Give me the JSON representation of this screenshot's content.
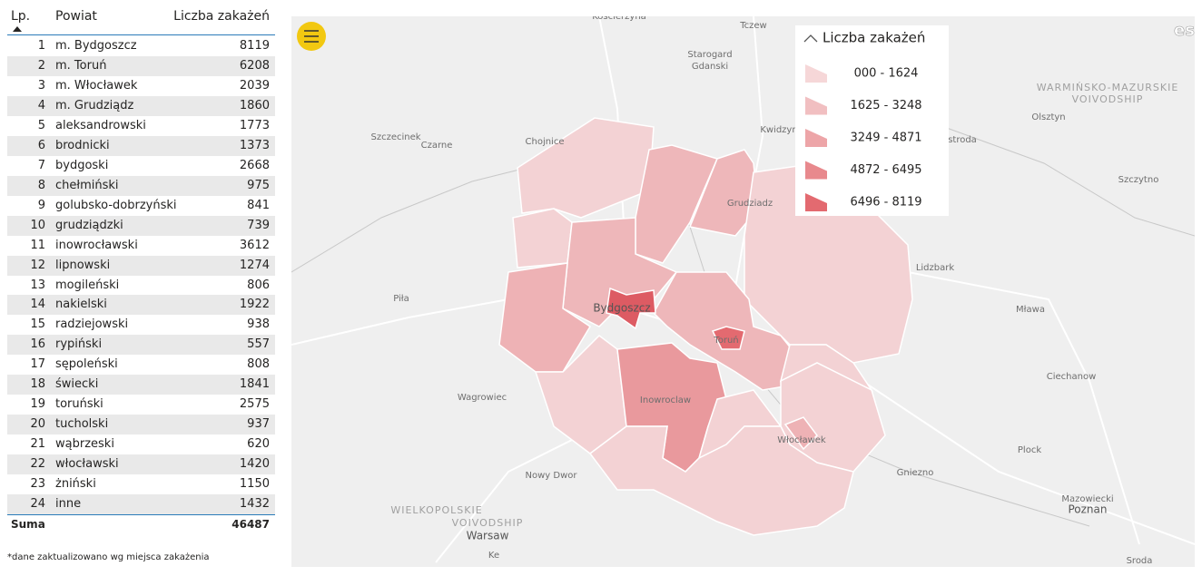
{
  "table": {
    "headers": [
      "Lp.",
      "Powiat",
      "Liczba zakażeń"
    ],
    "rows": [
      [
        1,
        "m. Bydgoszcz",
        8119
      ],
      [
        2,
        "m. Toruń",
        6208
      ],
      [
        3,
        "m. Włocławek",
        2039
      ],
      [
        4,
        "m. Grudziądz",
        1860
      ],
      [
        5,
        "aleksandrowski",
        1773
      ],
      [
        6,
        "brodnicki",
        1373
      ],
      [
        7,
        "bydgoski",
        2668
      ],
      [
        8,
        "chełmiński",
        975
      ],
      [
        9,
        "golubsko-dobrzyński",
        841
      ],
      [
        10,
        "grudziądzki",
        739
      ],
      [
        11,
        "inowrocławski",
        3612
      ],
      [
        12,
        "lipnowski",
        1274
      ],
      [
        13,
        "mogileński",
        806
      ],
      [
        14,
        "nakielski",
        1922
      ],
      [
        15,
        "radziejowski",
        938
      ],
      [
        16,
        "rypiński",
        557
      ],
      [
        17,
        "sępoleński",
        808
      ],
      [
        18,
        "świecki",
        1841
      ],
      [
        19,
        "toruński",
        2575
      ],
      [
        20,
        "tucholski",
        937
      ],
      [
        21,
        "wąbrzeski",
        620
      ],
      [
        22,
        "włocławski",
        1420
      ],
      [
        23,
        "żniński",
        1150
      ],
      [
        24,
        "inne",
        1432
      ]
    ],
    "sum_label": "Suma",
    "sum": 46487
  },
  "footnote": "*dane zaktualizowano wg miejsca zakażenia",
  "legend": {
    "title": "Liczba zakażeń",
    "items": [
      "000 - 1624",
      "1625 - 3248",
      "3249 - 4871",
      "4872 - 6495",
      "6496 - 8119"
    ]
  },
  "map": {
    "labels": [
      "Kościerzyna",
      "Tczew",
      "Starogard",
      "Gdanski",
      "Kwidzyn",
      "Szczecinek",
      "Czarne",
      "Chojnice",
      "Grudziadz",
      "WARMIŃSKO-MAZURSKIE",
      "VOIVODSHIP",
      "Olsztyn",
      "stroda",
      "Szczytno",
      "Lidzbark",
      "Piła",
      "Bydgoszcz",
      "Mława",
      "Toruń",
      "Ciechanow",
      "Wagrowiec",
      "Inowroclaw",
      "Włocławek",
      "Plock",
      "Gniezno",
      "Nowy Dwor",
      "Mazowiecki",
      "Poznan",
      "WIELKOPOLSKIE",
      "VOIVODSHIP",
      "Warsaw",
      "Sroda",
      "Ke",
      "esri"
    ]
  }
}
